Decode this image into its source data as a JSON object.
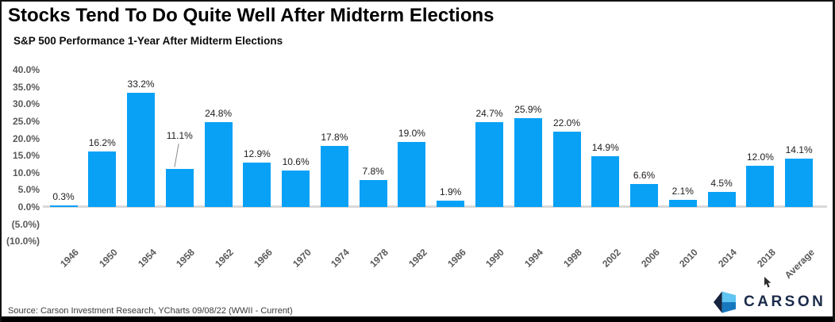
{
  "chart_data": {
    "type": "bar",
    "title": "Stocks Tend To Do Quite Well After Midterm Elections",
    "subtitle": "S&P 500 Performance 1-Year After Midterm Elections",
    "categories": [
      "1946",
      "1950",
      "1954",
      "1958",
      "1962",
      "1966",
      "1970",
      "1974",
      "1978",
      "1982",
      "1986",
      "1990",
      "1994",
      "1998",
      "2002",
      "2006",
      "2010",
      "2014",
      "2018",
      "Average"
    ],
    "values": [
      0.3,
      16.2,
      33.2,
      11.1,
      24.8,
      12.9,
      10.6,
      17.8,
      7.8,
      19.0,
      1.9,
      24.7,
      25.9,
      22.0,
      14.9,
      6.6,
      2.1,
      4.5,
      12.0,
      14.1
    ],
    "value_labels": [
      "0.3%",
      "16.2%",
      "33.2%",
      "11.1%",
      "24.8%",
      "12.9%",
      "10.6%",
      "17.8%",
      "7.8%",
      "19.0%",
      "1.9%",
      "24.7%",
      "25.9%",
      "22.0%",
      "14.9%",
      "6.6%",
      "2.1%",
      "4.5%",
      "12.0%",
      "14.1%"
    ],
    "xlabel": "",
    "ylabel": "",
    "ylim": [
      -10,
      40
    ],
    "y_tick_labels": [
      "40.0%",
      "35.0%",
      "30.0%",
      "25.0%",
      "20.0%",
      "15.0%",
      "10.0%",
      "5.0%",
      "0.0%",
      "(5.0%)",
      "(10.0%)"
    ],
    "y_tick_values": [
      40,
      35,
      30,
      25,
      20,
      15,
      10,
      5,
      0,
      -5,
      -10
    ],
    "grid": false,
    "legend": false,
    "bar_color": "#09a1f6",
    "label_callout_category": "1958"
  },
  "footer": {
    "source": "Source: Carson Investment Research, YCharts 09/08/22 (WWII - Current)",
    "brand": "CARSON"
  },
  "colors": {
    "bar_blue": "#09a1f6",
    "axis_text": "#595959",
    "brand_navy": "#1b2b4a",
    "brand_light_blue": "#5fc4f1",
    "brand_mid_blue": "#1878be",
    "baseline_gray": "#d9d9d9",
    "bottom_bar": "#000000"
  }
}
